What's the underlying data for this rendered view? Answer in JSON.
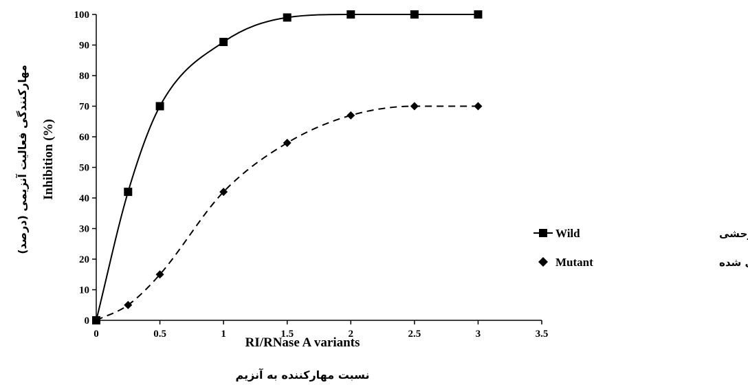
{
  "chart_data": {
    "type": "line",
    "x_axis": {
      "title": "RI/RNase A variants",
      "title_fa": "نسبت مهارکننده به آنزیم",
      "min": 0,
      "max": 3.5,
      "ticks": [
        "0",
        "0.5",
        "1",
        "1.5",
        "2",
        "2.5",
        "3",
        "3.5"
      ]
    },
    "y_axis": {
      "title": "Inhibition (%)",
      "title_fa": "مهارکنندگی فعالیت آنزیمی (درصد)",
      "min": 0,
      "max": 100,
      "ticks": [
        "0",
        "10",
        "20",
        "30",
        "40",
        "50",
        "60",
        "70",
        "80",
        "90",
        "100"
      ]
    },
    "grid": false,
    "legend_position": "right",
    "series": [
      {
        "name": "Wild",
        "name_fa": "آنزیم وحشی",
        "marker": "square",
        "line_style": "solid",
        "color": "#000000",
        "x": [
          0,
          0.25,
          0.5,
          1,
          1.5,
          2,
          2.5,
          3
        ],
        "y": [
          0,
          42,
          70,
          91,
          99,
          100,
          100,
          100
        ]
      },
      {
        "name": "Mutant",
        "name_fa": "واریانت مهندسی شده",
        "marker": "diamond",
        "line_style": "dashed",
        "color": "#000000",
        "x": [
          0,
          0.25,
          0.5,
          1,
          1.5,
          2,
          2.5,
          3
        ],
        "y": [
          0,
          5,
          15,
          42,
          58,
          67,
          70,
          70
        ]
      }
    ]
  }
}
